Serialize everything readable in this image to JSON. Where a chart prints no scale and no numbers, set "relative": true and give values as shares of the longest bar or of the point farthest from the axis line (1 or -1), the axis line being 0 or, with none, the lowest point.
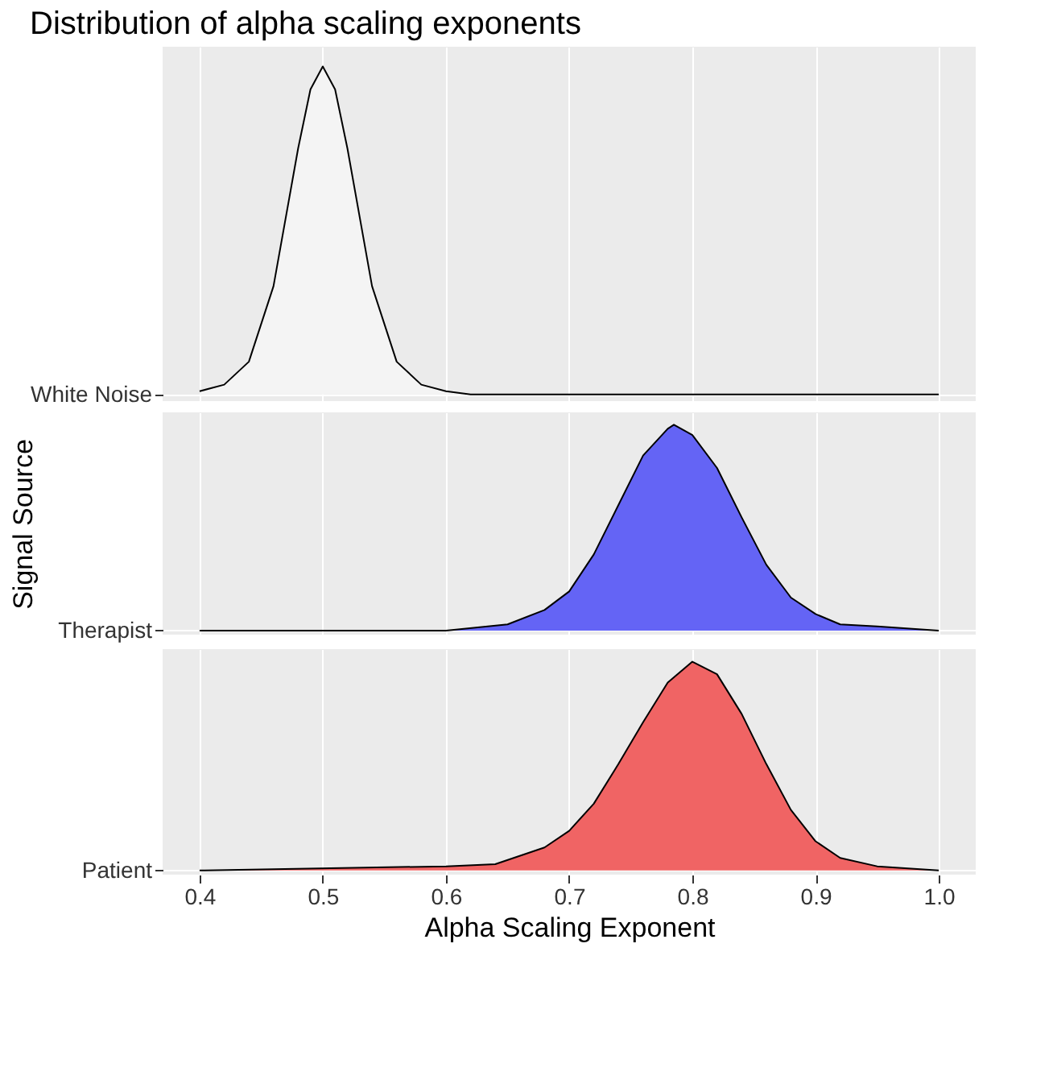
{
  "chart_data": [
    {
      "type": "area",
      "title": "Distribution of alpha scaling exponents",
      "relative": true,
      "grid": true,
      "tick_labels": "y",
      "xlim": [
        0.37,
        1.03
      ],
      "xticks": [
        0.4,
        0.5,
        0.6,
        0.7,
        0.8,
        0.9,
        1.0
      ],
      "series": [
        {
          "name": "White Noise",
          "color": "#f4f4f4",
          "x": [
            0.4,
            0.42,
            0.44,
            0.46,
            0.48,
            0.49,
            0.5,
            0.51,
            0.52,
            0.54,
            0.56,
            0.58,
            0.6,
            0.62,
            1.0
          ],
          "values": [
            0.01,
            0.03,
            0.1,
            0.33,
            0.75,
            0.93,
            1,
            0.93,
            0.75,
            0.33,
            0.1,
            0.03,
            0.01,
            0,
            0
          ]
        }
      ]
    },
    {
      "type": "area",
      "ylabel": "Signal Source",
      "relative": true,
      "grid": true,
      "tick_labels": "y",
      "xlim": [
        0.37,
        1.03
      ],
      "xticks": [
        0.4,
        0.5,
        0.6,
        0.7,
        0.8,
        0.9,
        1.0
      ],
      "series": [
        {
          "name": "Therapist",
          "color": "#6464f5",
          "x": [
            0.4,
            0.6,
            0.65,
            0.68,
            0.7,
            0.72,
            0.74,
            0.76,
            0.78,
            0.785,
            0.8,
            0.82,
            0.84,
            0.86,
            0.88,
            0.9,
            0.92,
            0.95,
            1.0
          ],
          "values": [
            0,
            0,
            0.03,
            0.1,
            0.19,
            0.37,
            0.61,
            0.85,
            0.98,
            1,
            0.95,
            0.79,
            0.55,
            0.32,
            0.16,
            0.08,
            0.03,
            0.02,
            0
          ]
        }
      ]
    },
    {
      "type": "area",
      "xlabel": "Alpha Scaling Exponent",
      "relative": true,
      "grid": true,
      "xlim": [
        0.37,
        1.03
      ],
      "xticks": [
        0.4,
        0.5,
        0.6,
        0.7,
        0.8,
        0.9,
        {
          "value": 1.0,
          "label": "1.0"
        }
      ],
      "series": [
        {
          "name": "Patient",
          "color": "#f06464",
          "x": [
            0.4,
            0.6,
            0.64,
            0.68,
            0.7,
            0.72,
            0.74,
            0.76,
            0.78,
            0.8,
            0.82,
            0.84,
            0.86,
            0.88,
            0.9,
            0.92,
            0.95,
            1.0
          ],
          "values": [
            0,
            0.02,
            0.03,
            0.11,
            0.19,
            0.32,
            0.51,
            0.71,
            0.9,
            1,
            0.94,
            0.75,
            0.51,
            0.29,
            0.14,
            0.06,
            0.02,
            0
          ]
        }
      ]
    }
  ]
}
